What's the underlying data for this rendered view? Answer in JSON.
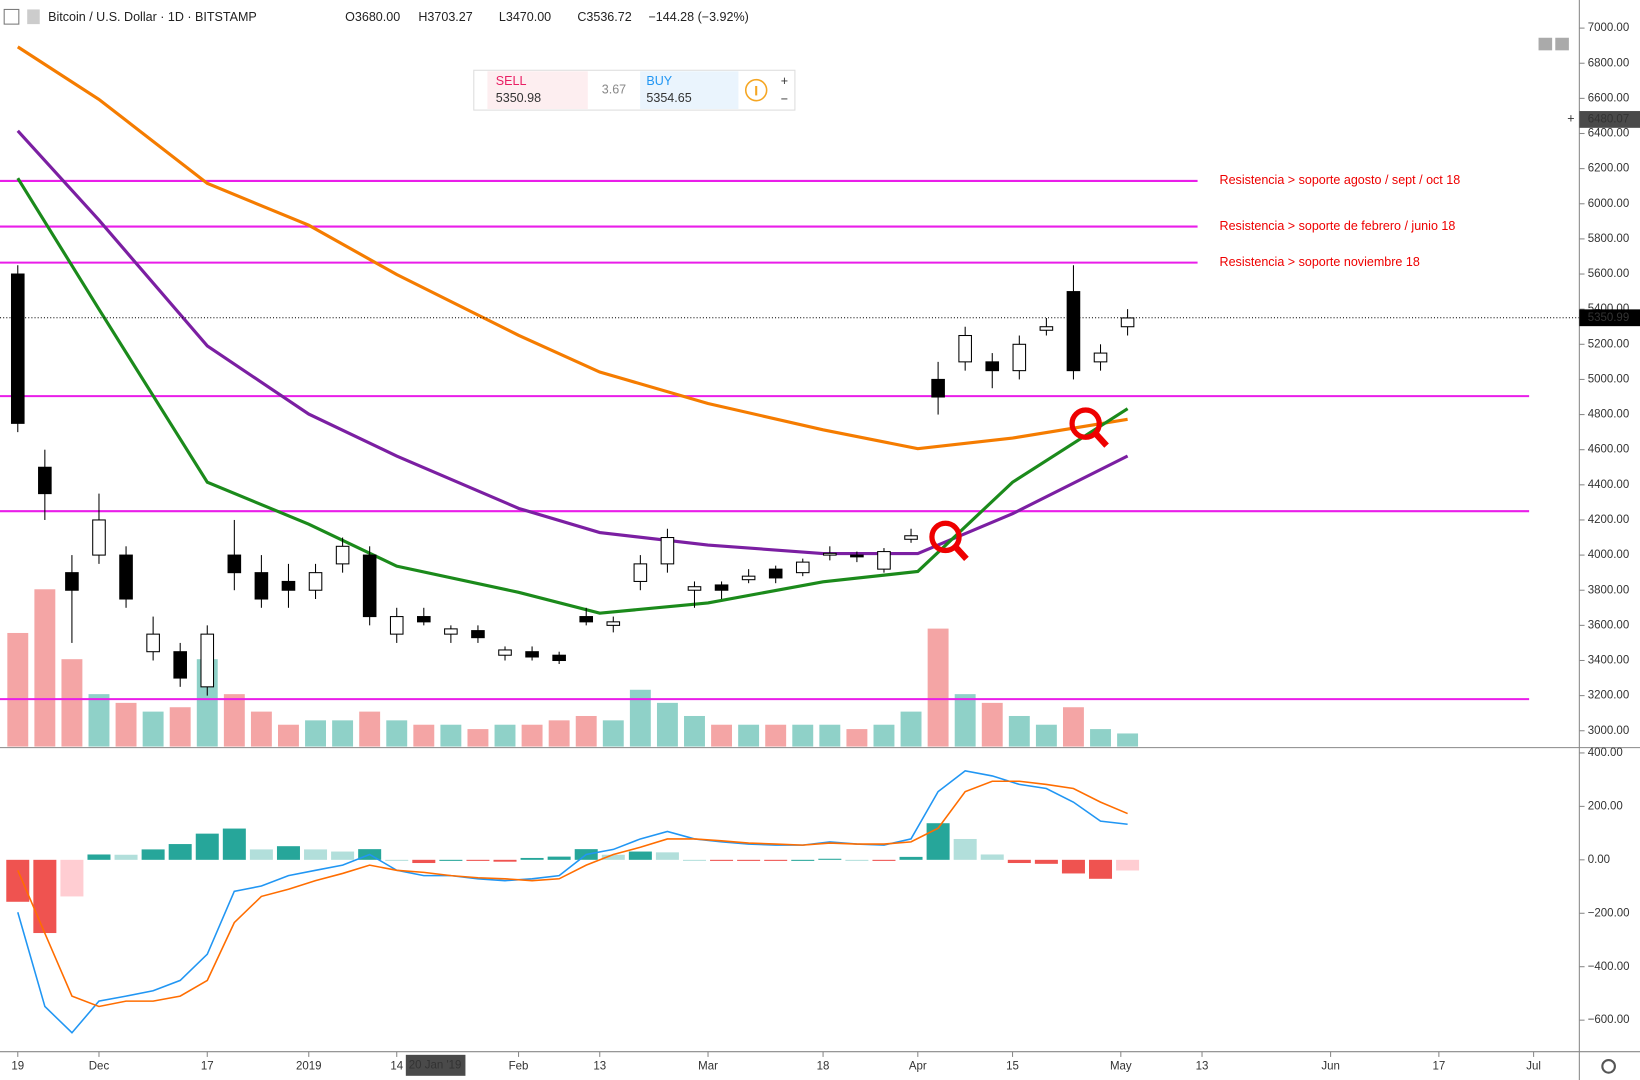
{
  "header": {
    "symbol": "Bitcoin / U.S. Dollar · 1D · BITSTAMP",
    "open": "O3680.00",
    "high": "H3703.27",
    "low": "L3470.00",
    "close": "C3536.72",
    "change": "−144.28 (−3.92%)"
  },
  "trade_widget": {
    "sell_label": "SELL",
    "sell_price": "5350.98",
    "spread": "3.67",
    "buy_label": "BUY",
    "buy_price": "5354.65"
  },
  "crosshair": {
    "date_label": "20 Jan '19",
    "price": {
      "value": 6480.07,
      "label": "6480.07"
    }
  },
  "chart_data": [
    {
      "type": "candlestick",
      "x": [
        "2018-11-19",
        "2018-11-23",
        "2018-11-27",
        "2018-12-01",
        "2018-12-05",
        "2018-12-09",
        "2018-12-13",
        "2018-12-17",
        "2018-12-21",
        "2018-12-25",
        "2018-12-29",
        "2019-01-02",
        "2019-01-06",
        "2019-01-10",
        "2019-01-14",
        "2019-01-18",
        "2019-01-22",
        "2019-01-26",
        "2019-01-30",
        "2019-02-03",
        "2019-02-07",
        "2019-02-11",
        "2019-02-15",
        "2019-02-19",
        "2019-02-23",
        "2019-02-27",
        "2019-03-03",
        "2019-03-07",
        "2019-03-11",
        "2019-03-15",
        "2019-03-19",
        "2019-03-23",
        "2019-03-27",
        "2019-03-31",
        "2019-04-04",
        "2019-04-08",
        "2019-04-12",
        "2019-04-16",
        "2019-04-20",
        "2019-04-24",
        "2019-04-28",
        "2019-05-02"
      ],
      "open": [
        5600,
        4500,
        3900,
        4000,
        4000,
        3450,
        3450,
        3250,
        4000,
        3900,
        3850,
        3800,
        3950,
        4000,
        3550,
        3650,
        3550,
        3570,
        3430,
        3450,
        3430,
        3650,
        3600,
        3850,
        3950,
        3800,
        3830,
        3860,
        3920,
        3900,
        4000,
        4000,
        3920,
        4090,
        5000,
        5100,
        5100,
        5050,
        5280,
        5500,
        5100,
        5300
      ],
      "high": [
        5650,
        4600,
        4000,
        4350,
        4050,
        3650,
        3500,
        3600,
        4200,
        4000,
        3950,
        3950,
        4100,
        4050,
        3700,
        3700,
        3600,
        3600,
        3480,
        3480,
        3450,
        3700,
        3650,
        4000,
        4150,
        3850,
        3850,
        3920,
        3940,
        3980,
        4050,
        4020,
        4040,
        4150,
        5100,
        5300,
        5150,
        5250,
        5350,
        5650,
        5200,
        5400
      ],
      "low": [
        4700,
        4200,
        3500,
        3950,
        3700,
        3400,
        3250,
        3200,
        3800,
        3700,
        3700,
        3750,
        3900,
        3600,
        3500,
        3600,
        3500,
        3500,
        3400,
        3400,
        3380,
        3600,
        3560,
        3800,
        3900,
        3700,
        3750,
        3840,
        3840,
        3880,
        3970,
        3960,
        3900,
        4070,
        4800,
        5050,
        4950,
        5000,
        5250,
        5000,
        5050,
        5250
      ],
      "close": [
        4750,
        4350,
        3800,
        4200,
        3750,
        3550,
        3300,
        3550,
        3900,
        3750,
        3800,
        3900,
        4050,
        3650,
        3650,
        3620,
        3580,
        3530,
        3460,
        3420,
        3400,
        3620,
        3620,
        3950,
        4100,
        3820,
        3800,
        3880,
        3870,
        3960,
        4010,
        3990,
        4020,
        4110,
        4900,
        5250,
        5050,
        5200,
        5300,
        5050,
        5150,
        5350
      ],
      "volume": [
        130,
        180,
        100,
        60,
        50,
        40,
        45,
        100,
        60,
        40,
        25,
        30,
        30,
        40,
        30,
        25,
        25,
        20,
        25,
        25,
        30,
        35,
        30,
        65,
        50,
        35,
        25,
        25,
        25,
        25,
        25,
        20,
        25,
        40,
        135,
        60,
        50,
        35,
        25,
        45,
        20,
        15
      ],
      "up_color": "#ffffff",
      "down_color": "#000000",
      "up_volume_color": "#8fd1c8",
      "down_volume_color": "#f4a5a5",
      "ylim": [
        2910,
        7160
      ],
      "yticks": [
        {
          "value": 3000,
          "label": "3000.00"
        },
        {
          "value": 3200,
          "label": "3200.00"
        },
        {
          "value": 3400,
          "label": "3400.00"
        },
        {
          "value": 3600,
          "label": "3600.00"
        },
        {
          "value": 3800,
          "label": "3800.00"
        },
        {
          "value": 4000,
          "label": "4000.00"
        },
        {
          "value": 4200,
          "label": "4200.00"
        },
        {
          "value": 4400,
          "label": "4400.00"
        },
        {
          "value": 4600,
          "label": "4600.00"
        },
        {
          "value": 4800,
          "label": "4800.00"
        },
        {
          "value": 5000,
          "label": "5000.00"
        },
        {
          "value": 5200,
          "label": "5200.00"
        },
        {
          "value": 5400,
          "label": "5400.00"
        },
        {
          "value": 5600,
          "label": "5600.00"
        },
        {
          "value": 5800,
          "label": "5800.00"
        },
        {
          "value": 6000,
          "label": "6000.00"
        },
        {
          "value": 6200,
          "label": "6200.00"
        },
        {
          "value": 6400,
          "label": "6400.00"
        },
        {
          "value": 6600,
          "label": "6600.00"
        },
        {
          "value": 6800,
          "label": "6800.00"
        },
        {
          "value": 7000,
          "label": "7000.00"
        }
      ],
      "xticks": [
        {
          "value": "2018-11-19",
          "label": "19"
        },
        {
          "value": "2018-12-01",
          "label": "Dec"
        },
        {
          "value": "2018-12-17",
          "label": "17"
        },
        {
          "value": "2019-01-01",
          "label": "2019"
        },
        {
          "value": "2019-01-14",
          "label": "14"
        },
        {
          "value": "2019-02-01",
          "label": "Feb"
        },
        {
          "value": "2019-02-13",
          "label": "13"
        },
        {
          "value": "2019-03-01",
          "label": "Mar"
        },
        {
          "value": "2019-03-18",
          "label": "18"
        },
        {
          "value": "2019-04-01",
          "label": "Apr"
        },
        {
          "value": "2019-04-15",
          "label": "15"
        },
        {
          "value": "2019-05-01",
          "label": "May"
        },
        {
          "value": "2019-05-13",
          "label": "13"
        },
        {
          "value": "2019-06-01",
          "label": "Jun"
        },
        {
          "value": "2019-06-17",
          "label": "17"
        },
        {
          "value": "2019-07-01",
          "label": "Jul"
        }
      ],
      "last_price": {
        "value": 5350.99,
        "label": "5350.99"
      },
      "level_color": "#e91ee9",
      "levels": [
        {
          "value": 6130,
          "label": "Resistencia > soporte agosto / sept / oct 18"
        },
        {
          "value": 5870,
          "label": "Resistencia > soporte de febrero / junio 18"
        },
        {
          "value": 5665,
          "label": "Resistencia > soporte noviembre 18"
        },
        4905,
        4250,
        3180
      ],
      "moving_averages": {
        "x": [
          "2018-11-19",
          "2018-12-01",
          "2018-12-17",
          "2019-01-01",
          "2019-01-14",
          "2019-02-01",
          "2019-02-13",
          "2019-03-01",
          "2019-03-18",
          "2019-04-01",
          "2019-04-15",
          "2019-05-02"
        ],
        "series": [
          {
            "color": "#f57c00",
            "values": [
              6893,
              6594,
              6116,
              5878,
              5597,
              5251,
              5042,
              4863,
              4713,
              4606,
              4666,
              4773
            ]
          },
          {
            "color": "#7b1fa2",
            "values": [
              6415,
              5907,
              5191,
              4803,
              4564,
              4266,
              4128,
              4057,
              4009,
              4009,
              4236,
              4564
            ]
          },
          {
            "color": "#1b8a1b",
            "values": [
              6146,
              5400,
              4415,
              4176,
              3937,
              3788,
              3669,
              3728,
              3848,
              3907,
              4415,
              4833
            ]
          }
        ]
      }
    },
    {
      "type": "macd",
      "x": [
        "2018-11-19",
        "2018-11-23",
        "2018-11-27",
        "2018-12-01",
        "2018-12-05",
        "2018-12-09",
        "2018-12-13",
        "2018-12-17",
        "2018-12-21",
        "2018-12-25",
        "2018-12-29",
        "2019-01-02",
        "2019-01-06",
        "2019-01-10",
        "2019-01-14",
        "2019-01-18",
        "2019-01-22",
        "2019-01-26",
        "2019-01-30",
        "2019-02-03",
        "2019-02-07",
        "2019-02-11",
        "2019-02-15",
        "2019-02-19",
        "2019-02-23",
        "2019-02-27",
        "2019-03-03",
        "2019-03-07",
        "2019-03-11",
        "2019-03-15",
        "2019-03-19",
        "2019-03-23",
        "2019-03-27",
        "2019-03-31",
        "2019-04-04",
        "2019-04-08",
        "2019-04-12",
        "2019-04-16",
        "2019-04-20",
        "2019-04-24",
        "2019-04-28",
        "2019-05-02"
      ],
      "series": [
        {
          "color": "#2196f3",
          "values": [
            -196,
            -549,
            -647,
            -529,
            -510,
            -490,
            -451,
            -353,
            -118,
            -98,
            -59,
            -39,
            -20,
            20,
            -39,
            -59,
            -59,
            -71,
            -78,
            -71,
            -59,
            20,
            39,
            78,
            106,
            78,
            67,
            59,
            55,
            55,
            67,
            59,
            55,
            78,
            255,
            333,
            314,
            282,
            267,
            216,
            145,
            133
          ]
        },
        {
          "color": "#ff6d00",
          "values": [
            -39,
            -275,
            -510,
            -549,
            -529,
            -529,
            -510,
            -451,
            -235,
            -137,
            -110,
            -78,
            -51,
            -20,
            -39,
            -47,
            -59,
            -67,
            -71,
            -78,
            -71,
            -20,
            20,
            47,
            78,
            78,
            71,
            63,
            59,
            55,
            63,
            59,
            59,
            67,
            118,
            255,
            294,
            294,
            282,
            267,
            216,
            173
          ]
        }
      ],
      "histogram": [
        -157,
        -274,
        -137,
        20,
        19,
        39,
        59,
        98,
        117,
        39,
        51,
        39,
        31,
        40,
        0,
        -12,
        0,
        -4,
        -7,
        7,
        12,
        40,
        19,
        31,
        28,
        0,
        -4,
        -4,
        -4,
        0,
        4,
        0,
        -4,
        11,
        137,
        78,
        20,
        -12,
        -15,
        -51,
        -71,
        -40
      ],
      "histogram_colors": [
        "#26a69a",
        "#b2dfdb",
        "#ef5350",
        "#ffcdd2"
      ],
      "ylim": [
        -718,
        416
      ],
      "yticks": [
        {
          "value": 400,
          "label": "400.00"
        },
        {
          "value": 200,
          "label": "200.00"
        },
        {
          "value": 0,
          "label": "0.00"
        },
        {
          "value": -200,
          "label": "−200.00"
        },
        {
          "value": -400,
          "label": "−400.00"
        },
        {
          "value": -600,
          "label": "−600.00"
        }
      ]
    }
  ]
}
